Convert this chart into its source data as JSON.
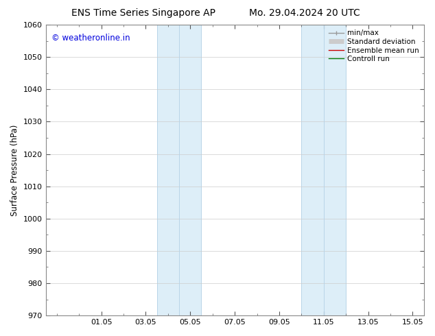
{
  "title_left": "ENS Time Series Singapore AP",
  "title_right": "Mo. 29.04.2024 20 UTC",
  "ylabel": "Surface Pressure (hPa)",
  "ylim": [
    970,
    1060
  ],
  "yticks": [
    970,
    980,
    990,
    1000,
    1010,
    1020,
    1030,
    1040,
    1050,
    1060
  ],
  "xtick_labels": [
    "01.05",
    "03.05",
    "05.05",
    "07.05",
    "09.05",
    "11.05",
    "13.05",
    "15.05"
  ],
  "xtick_positions": [
    2,
    4,
    6,
    8,
    10,
    12,
    14,
    16
  ],
  "xlim": [
    -0.5,
    16.5
  ],
  "shaded_bands": [
    {
      "x_start": 4.5,
      "x_end": 5.5
    },
    {
      "x_start": 5.5,
      "x_end": 6.5
    },
    {
      "x_start": 11.0,
      "x_end": 12.0
    },
    {
      "x_start": 12.0,
      "x_end": 13.0
    }
  ],
  "shaded_color": "#ddeef8",
  "shaded_edge_color": "#b8d4e8",
  "shaded_bands_grouped": [
    {
      "x_start": 4.5,
      "x_end": 6.5
    },
    {
      "x_start": 11.0,
      "x_end": 13.0
    }
  ],
  "inner_divider": [
    5.5,
    12.0
  ],
  "watermark_text": "© weatheronline.in",
  "watermark_color": "#0000dd",
  "legend_entries": [
    {
      "label": "min/max",
      "color": "#999999",
      "lw": 1.0
    },
    {
      "label": "Standard deviation",
      "color": "#cccccc",
      "lw": 5
    },
    {
      "label": "Ensemble mean run",
      "color": "#cc0000",
      "lw": 1.0
    },
    {
      "label": "Controll run",
      "color": "#007700",
      "lw": 1.0
    }
  ],
  "background_color": "#ffffff",
  "grid_color": "#cccccc",
  "tick_color": "#000000",
  "spine_color": "#888888",
  "title_fontsize": 10,
  "label_fontsize": 8.5,
  "tick_fontsize": 8,
  "watermark_fontsize": 8.5,
  "legend_fontsize": 7.5
}
